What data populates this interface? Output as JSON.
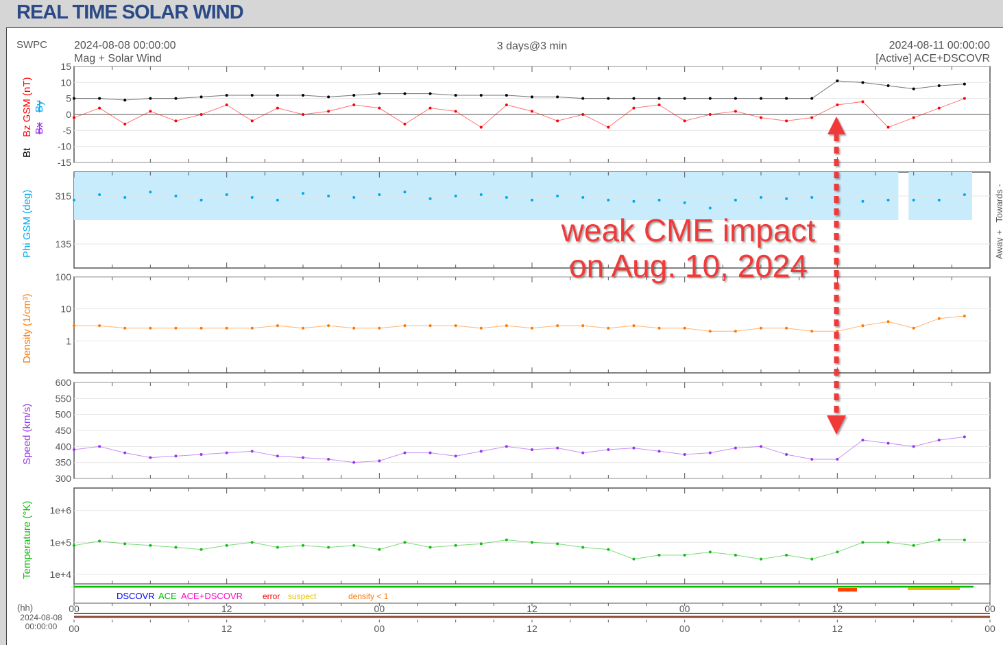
{
  "page_title": "REAL TIME SOLAR WIND",
  "header": {
    "agency": "SWPC",
    "start_time": "2024-08-08 00:00:00",
    "product": "Mag + Solar Wind",
    "span": "3 days@3 min",
    "end_time": "2024-08-11 00:00:00",
    "source": "[Active] ACE+DSCOVR"
  },
  "annotation": {
    "line1": "weak CME impact",
    "line2": "on Aug. 10, 2024",
    "color": "#f03a3a",
    "time_hours": 60
  },
  "legend": {
    "dscovr": "DSCOVR",
    "ace": "ACE",
    "ace_dscovr": "ACE+DSCOVR",
    "error": "error",
    "suspect": "suspect",
    "density_lt1": "density < 1",
    "colors": {
      "dscovr": "#0000ff",
      "ace": "#00bb00",
      "ace_dscovr": "#ff00cc",
      "error": "#ff0000",
      "suspect": "#e6c200",
      "density_lt1": "#ff7700"
    }
  },
  "time_axis": {
    "unit_label": "(hh)",
    "start_date": "2024-08-08",
    "start_clock": "00:00:00",
    "ticks": [
      "00",
      "12",
      "00",
      "12",
      "00",
      "12",
      "00"
    ]
  },
  "chart_data": [
    {
      "type": "line",
      "name": "mag",
      "ylabels": {
        "bt": "Bt",
        "bz": "Bz GSM (nT)",
        "bx": "Bx",
        "by": "By"
      },
      "ylim": [
        -15,
        15
      ],
      "yscale": "linear",
      "yticks": [
        "15",
        "10",
        "5",
        "0",
        "-5",
        "-10",
        "-15"
      ],
      "x_hours": [
        0,
        2,
        4,
        6,
        8,
        10,
        12,
        14,
        16,
        18,
        20,
        22,
        24,
        26,
        28,
        30,
        32,
        34,
        36,
        38,
        40,
        42,
        44,
        46,
        48,
        50,
        52,
        54,
        56,
        58,
        60,
        62,
        64,
        66,
        68,
        70
      ],
      "series": [
        {
          "name": "Bt",
          "color": "#000000",
          "values": [
            5,
            5,
            4.5,
            5,
            5,
            5.5,
            6,
            6,
            6,
            6,
            5.5,
            6,
            6.5,
            6.5,
            6.5,
            6,
            6,
            6,
            5.5,
            5.5,
            5,
            5,
            5,
            5,
            5,
            5,
            5,
            5,
            5,
            5,
            10.5,
            10,
            9,
            8,
            9,
            9.5
          ]
        },
        {
          "name": "Bz",
          "color": "#ff0000",
          "values": [
            -1,
            2,
            -3,
            1,
            -2,
            0,
            3,
            -2,
            2,
            0,
            1,
            3,
            2,
            -3,
            2,
            1,
            -4,
            3,
            1,
            -2,
            0,
            -4,
            2,
            3,
            -2,
            0,
            1,
            -1,
            -2,
            -1,
            3,
            4,
            -4,
            -1,
            2,
            5
          ]
        }
      ]
    },
    {
      "type": "scatter",
      "name": "phi",
      "ylabel": "Phi GSM (deg)",
      "right_label": "Away +   Towards -",
      "ylim": [
        45,
        405
      ],
      "yscale": "linear",
      "yticks": [
        "315",
        "135"
      ],
      "ytick_values": [
        315,
        135
      ],
      "away_band": [
        225,
        405
      ],
      "x_hours": [
        0,
        2,
        4,
        6,
        8,
        10,
        12,
        14,
        16,
        18,
        20,
        22,
        24,
        26,
        28,
        30,
        32,
        34,
        36,
        38,
        40,
        42,
        44,
        46,
        48,
        50,
        52,
        54,
        56,
        58,
        60,
        62,
        64,
        66,
        68,
        70
      ],
      "series": [
        {
          "name": "Phi",
          "color": "#00aaee",
          "values": [
            300,
            320,
            310,
            330,
            315,
            300,
            320,
            310,
            300,
            325,
            315,
            310,
            320,
            330,
            305,
            315,
            320,
            310,
            300,
            315,
            310,
            300,
            295,
            300,
            290,
            270,
            300,
            310,
            305,
            310,
            300,
            295,
            300,
            300,
            300,
            320
          ]
        }
      ]
    },
    {
      "type": "line",
      "name": "density",
      "ylabel": "Density (1/cm³)",
      "ylim": [
        0.1,
        100
      ],
      "yscale": "log",
      "yticks": [
        "100",
        "10",
        "1"
      ],
      "ytick_values": [
        100,
        10,
        1
      ],
      "x_hours": [
        0,
        2,
        4,
        6,
        8,
        10,
        12,
        14,
        16,
        18,
        20,
        22,
        24,
        26,
        28,
        30,
        32,
        34,
        36,
        38,
        40,
        42,
        44,
        46,
        48,
        50,
        52,
        54,
        56,
        58,
        60,
        62,
        64,
        66,
        68,
        70
      ],
      "series": [
        {
          "name": "Density",
          "color": "#ff7700",
          "values": [
            3,
            3,
            2.5,
            2.5,
            2.5,
            2.5,
            2.5,
            2.5,
            3,
            2.5,
            3,
            2.5,
            2.5,
            3,
            3,
            3,
            2.5,
            3,
            2.5,
            3,
            3,
            2.5,
            3,
            2.5,
            2.5,
            2,
            2,
            2.5,
            2.5,
            2,
            2,
            3,
            4,
            2.5,
            5,
            6
          ]
        }
      ]
    },
    {
      "type": "line",
      "name": "speed",
      "ylabel": "Speed (km/s)",
      "ylim": [
        300,
        600
      ],
      "yscale": "linear",
      "yticks": [
        "600",
        "550",
        "500",
        "450",
        "400",
        "350",
        "300"
      ],
      "ytick_values": [
        600,
        550,
        500,
        450,
        400,
        350,
        300
      ],
      "x_hours": [
        0,
        2,
        4,
        6,
        8,
        10,
        12,
        14,
        16,
        18,
        20,
        22,
        24,
        26,
        28,
        30,
        32,
        34,
        36,
        38,
        40,
        42,
        44,
        46,
        48,
        50,
        52,
        54,
        56,
        58,
        60,
        62,
        64,
        66,
        68,
        70
      ],
      "series": [
        {
          "name": "Speed",
          "color": "#9933ee",
          "values": [
            390,
            400,
            380,
            365,
            370,
            375,
            380,
            385,
            370,
            365,
            360,
            350,
            355,
            380,
            380,
            370,
            385,
            400,
            390,
            395,
            380,
            390,
            395,
            385,
            375,
            380,
            395,
            400,
            375,
            360,
            360,
            420,
            410,
            400,
            420,
            430
          ]
        }
      ]
    },
    {
      "type": "line",
      "name": "temperature",
      "ylabel": "Temperature (°K)",
      "ylim": [
        5000,
        5000000
      ],
      "yscale": "log",
      "yticks": [
        "1e+6",
        "1e+5",
        "1e+4"
      ],
      "ytick_values": [
        1000000,
        100000,
        10000
      ],
      "x_hours": [
        0,
        2,
        4,
        6,
        8,
        10,
        12,
        14,
        16,
        18,
        20,
        22,
        24,
        26,
        28,
        30,
        32,
        34,
        36,
        38,
        40,
        42,
        44,
        46,
        48,
        50,
        52,
        54,
        56,
        58,
        60,
        62,
        64,
        66,
        68,
        70
      ],
      "series": [
        {
          "name": "Temperature",
          "color": "#11bb11",
          "values": [
            80000,
            110000,
            90000,
            80000,
            70000,
            60000,
            80000,
            100000,
            70000,
            80000,
            70000,
            80000,
            60000,
            100000,
            70000,
            80000,
            90000,
            120000,
            100000,
            90000,
            70000,
            60000,
            30000,
            40000,
            40000,
            50000,
            40000,
            30000,
            40000,
            30000,
            50000,
            100000,
            100000,
            80000,
            120000,
            120000
          ]
        }
      ]
    }
  ]
}
